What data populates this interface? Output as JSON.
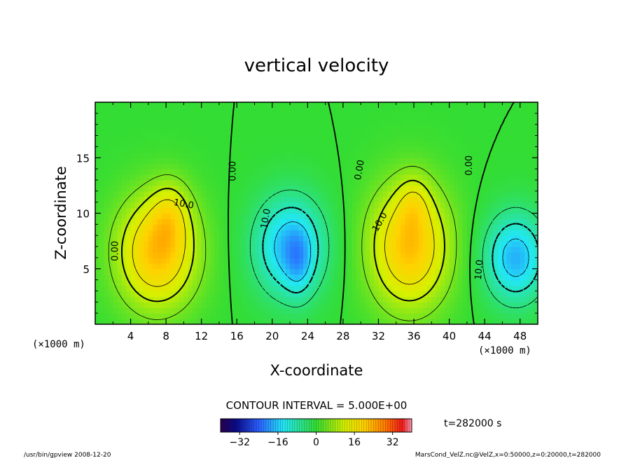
{
  "chart_data": {
    "type": "heatmap",
    "title": "vertical velocity",
    "xlabel": "X-coordinate",
    "ylabel": "Z-coordinate",
    "x_units_left": "(×1000 m)",
    "x_units_right": "(×1000 m)",
    "xlim": [
      0,
      50
    ],
    "ylim": [
      0,
      20
    ],
    "x_ticks": [
      4,
      8,
      12,
      16,
      20,
      24,
      28,
      32,
      36,
      40,
      44,
      48
    ],
    "y_ticks": [
      5,
      10,
      15
    ],
    "contour_interval_text": "CONTOUR INTERVAL = 5.000E+00",
    "contour_labels": [
      {
        "text": "0.00",
        "x": 2.3,
        "z": 6.6,
        "angle": -90
      },
      {
        "text": "10.0",
        "x": 10.0,
        "z": 10.8,
        "angle": 10
      },
      {
        "text": "0.00",
        "x": 15.6,
        "z": 13.8,
        "angle": -90
      },
      {
        "text": "10.0",
        "x": 19.3,
        "z": 9.5,
        "angle": -80
      },
      {
        "text": "0.00",
        "x": 29.9,
        "z": 13.9,
        "angle": -80
      },
      {
        "text": "10.0",
        "x": 32.2,
        "z": 9.2,
        "angle": -60
      },
      {
        "text": "0.00",
        "x": 42.3,
        "z": 14.3,
        "angle": -90
      },
      {
        "text": "10.0",
        "x": 43.4,
        "z": 4.9,
        "angle": -85
      }
    ],
    "colorbar": {
      "range": [
        -40,
        40
      ],
      "ticks": [
        -32,
        -16,
        0,
        16,
        32
      ],
      "tick_labels": [
        "−32",
        "−16",
        "0",
        "16",
        "32"
      ]
    },
    "cells": [
      {
        "x": 7.0,
        "z": 6.5,
        "rx": 4.5,
        "rz": 5.0,
        "amp": 22
      },
      {
        "x": 8.5,
        "z": 10.0,
        "rx": 2.2,
        "rz": 3.0,
        "amp": 8
      },
      {
        "x": 22.0,
        "z": 7.0,
        "rx": 4.0,
        "rz": 4.5,
        "amp": -18
      },
      {
        "x": 23.0,
        "z": 5.5,
        "rx": 1.5,
        "rz": 3.0,
        "amp": -6
      },
      {
        "x": 35.5,
        "z": 7.0,
        "rx": 4.5,
        "rz": 5.5,
        "amp": 22
      },
      {
        "x": 36.0,
        "z": 11.0,
        "rx": 1.8,
        "rz": 2.5,
        "amp": 6
      },
      {
        "x": 47.5,
        "z": 6.0,
        "rx": 3.5,
        "rz": 4.0,
        "amp": -18
      }
    ]
  },
  "time_label": "t=282000 s",
  "footer_left": "/usr/bin/gpview   2008-12-20",
  "footer_right": "MarsCond_VelZ.nc@VelZ,x=0:50000,z=0:20000,t=282000",
  "colors": {
    "background": "#ffffff",
    "zero_level": "#33dd33"
  }
}
